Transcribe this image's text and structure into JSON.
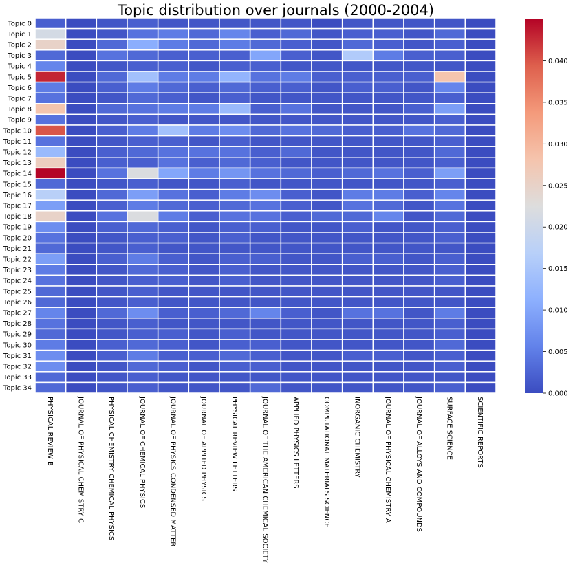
{
  "chart_data": {
    "type": "heatmap",
    "title": "Topic distribution over journals (2000-2004)",
    "xlabel": "",
    "ylabel": "",
    "columns": [
      "PHYSICAL REVIEW B",
      "JOURNAL OF PHYSICAL CHEMISTRY C",
      "PHYSICAL CHEMISTRY CHEMICAL PHYSICS",
      "JOURNAL OF CHEMICAL PHYSICS",
      "JOURNAL OF PHYSICS-CONDENSED MATTER",
      "JOURNAL OF APPLIED PHYSICS",
      "PHYSICAL REVIEW LETTERS",
      "JOURNAL OF THE AMERICAN CHEMICAL SOCIETY",
      "APPLIED PHYSICS LETTERS",
      "COMPUTATIONAL MATERIALS SCIENCE",
      "INORGANIC CHEMISTRY",
      "JOURNAL OF PHYSICAL CHEMISTRY A",
      "JOURNAL OF ALLOYS AND COMPOUNDS",
      "SURFACE SCIENCE",
      "SCIENTIFIC REPORTS"
    ],
    "rows": [
      "Topic 0",
      "Topic 1",
      "Topic 2",
      "Topic 3",
      "Topic 4",
      "Topic 5",
      "Topic 6",
      "Topic 7",
      "Topic 8",
      "Topic 9",
      "Topic 10",
      "Topic 11",
      "Topic 12",
      "Topic 13",
      "Topic 14",
      "Topic 15",
      "Topic 16",
      "Topic 17",
      "Topic 18",
      "Topic 19",
      "Topic 20",
      "Topic 21",
      "Topic 22",
      "Topic 23",
      "Topic 24",
      "Topic 25",
      "Topic 26",
      "Topic 27",
      "Topic 28",
      "Topic 29",
      "Topic 30",
      "Topic 31",
      "Topic 32",
      "Topic 33",
      "Topic 34"
    ],
    "values": [
      [
        0.002,
        0,
        0.001,
        0.002,
        0.001,
        0.001,
        0.001,
        0.001,
        0.001,
        0,
        0.001,
        0.001,
        0.001,
        0.001,
        0
      ],
      [
        0.021,
        0,
        0.001,
        0.004,
        0.005,
        0.003,
        0.006,
        0.002,
        0.003,
        0.001,
        0.002,
        0.002,
        0.001,
        0.003,
        0
      ],
      [
        0.025,
        0,
        0.003,
        0.011,
        0.005,
        0.003,
        0.005,
        0.003,
        0.002,
        0.001,
        0.003,
        0.002,
        0.001,
        0.002,
        0
      ],
      [
        0.003,
        0,
        0.004,
        0.003,
        0.002,
        0.002,
        0.002,
        0.01,
        0.002,
        0.001,
        0.016,
        0.005,
        0.002,
        0.002,
        0
      ],
      [
        0.006,
        0,
        0.001,
        0.002,
        0.002,
        0.001,
        0.002,
        0.002,
        0.001,
        0.001,
        0.001,
        0.001,
        0.001,
        0.001,
        0
      ],
      [
        0.043,
        0,
        0.003,
        0.014,
        0.005,
        0.005,
        0.012,
        0.004,
        0.005,
        0.002,
        0.002,
        0.002,
        0.002,
        0.028,
        0
      ],
      [
        0.005,
        0,
        0.002,
        0.005,
        0.003,
        0.002,
        0.003,
        0.002,
        0.002,
        0.001,
        0.002,
        0.002,
        0.001,
        0.006,
        0
      ],
      [
        0.004,
        0,
        0.001,
        0.003,
        0.002,
        0.001,
        0.002,
        0.001,
        0.001,
        0.001,
        0.001,
        0.001,
        0.001,
        0.002,
        0
      ],
      [
        0.028,
        0,
        0.003,
        0.004,
        0.005,
        0.005,
        0.013,
        0.002,
        0.004,
        0.001,
        0.001,
        0.001,
        0.002,
        0.009,
        0
      ],
      [
        0.004,
        0,
        0.001,
        0.002,
        0.001,
        0.001,
        0.001,
        0.001,
        0.001,
        0.001,
        0.001,
        0.001,
        0.001,
        0.002,
        0
      ],
      [
        0.04,
        0,
        0.002,
        0.005,
        0.014,
        0.005,
        0.007,
        0.003,
        0.004,
        0.003,
        0.002,
        0.002,
        0.004,
        0.003,
        0
      ],
      [
        0.004,
        0,
        0.001,
        0.002,
        0.002,
        0.001,
        0.002,
        0.001,
        0.001,
        0.001,
        0.001,
        0.001,
        0.001,
        0.002,
        0
      ],
      [
        0.013,
        0,
        0.002,
        0.003,
        0.004,
        0.004,
        0.004,
        0.002,
        0.003,
        0.001,
        0.001,
        0.001,
        0.001,
        0.003,
        0
      ],
      [
        0.026,
        0,
        0.002,
        0.002,
        0.004,
        0.002,
        0.003,
        0.002,
        0.001,
        0.001,
        0.001,
        0.001,
        0.001,
        0.002,
        0
      ],
      [
        0.045,
        0,
        0.004,
        0.022,
        0.01,
        0.005,
        0.008,
        0.004,
        0.003,
        0.002,
        0.003,
        0.004,
        0.002,
        0.009,
        0
      ],
      [
        0.003,
        0,
        0.001,
        0.002,
        0.001,
        0.001,
        0.002,
        0.001,
        0.001,
        0.001,
        0.001,
        0.001,
        0.001,
        0.002,
        0
      ],
      [
        0.017,
        0,
        0.003,
        0.009,
        0.004,
        0.002,
        0.005,
        0.007,
        0.002,
        0.001,
        0.005,
        0.005,
        0.002,
        0.006,
        0
      ],
      [
        0.009,
        0,
        0.002,
        0.005,
        0.003,
        0.002,
        0.003,
        0.004,
        0.002,
        0.001,
        0.004,
        0.003,
        0.001,
        0.004,
        0
      ],
      [
        0.025,
        0,
        0.004,
        0.022,
        0.005,
        0.002,
        0.004,
        0.004,
        0.002,
        0.003,
        0.003,
        0.006,
        0.001,
        0.003,
        0
      ],
      [
        0.007,
        0,
        0.002,
        0.003,
        0.002,
        0.001,
        0.002,
        0.002,
        0.001,
        0.001,
        0.002,
        0.001,
        0.001,
        0.002,
        0
      ],
      [
        0.004,
        0,
        0.001,
        0.002,
        0.002,
        0.001,
        0.002,
        0.001,
        0.001,
        0.001,
        0.001,
        0.001,
        0.001,
        0.002,
        0
      ],
      [
        0.003,
        0,
        0.001,
        0.002,
        0.001,
        0.001,
        0.001,
        0.001,
        0.001,
        0.001,
        0.001,
        0.001,
        0.001,
        0.001,
        0
      ],
      [
        0.009,
        0,
        0.002,
        0.005,
        0.002,
        0.001,
        0.002,
        0.002,
        0.001,
        0.001,
        0.002,
        0.002,
        0.001,
        0.002,
        0
      ],
      [
        0.005,
        0,
        0.001,
        0.003,
        0.002,
        0.001,
        0.002,
        0.001,
        0.001,
        0.001,
        0.001,
        0.001,
        0.001,
        0.002,
        0
      ],
      [
        0.004,
        0,
        0.001,
        0.002,
        0.002,
        0.001,
        0.002,
        0.001,
        0.001,
        0.001,
        0.001,
        0.001,
        0.001,
        0.002,
        0
      ],
      [
        0.003,
        0,
        0.001,
        0.002,
        0.001,
        0.001,
        0.001,
        0.001,
        0.001,
        0.001,
        0.001,
        0.001,
        0.001,
        0.001,
        0
      ],
      [
        0.003,
        0,
        0.001,
        0.002,
        0.001,
        0.001,
        0.001,
        0.001,
        0.001,
        0.001,
        0.001,
        0.001,
        0.001,
        0.001,
        0
      ],
      [
        0.006,
        0,
        0.003,
        0.007,
        0.002,
        0.002,
        0.003,
        0.006,
        0.002,
        0.001,
        0.004,
        0.004,
        0.001,
        0.005,
        0
      ],
      [
        0.004,
        0,
        0.001,
        0.002,
        0.001,
        0.001,
        0.001,
        0.001,
        0.001,
        0.001,
        0.001,
        0.001,
        0.001,
        0.002,
        0
      ],
      [
        0.003,
        0,
        0.001,
        0.002,
        0.002,
        0.001,
        0.002,
        0.001,
        0.001,
        0.001,
        0.001,
        0.001,
        0.001,
        0.002,
        0
      ],
      [
        0.005,
        0,
        0.002,
        0.003,
        0.002,
        0.001,
        0.002,
        0.002,
        0.001,
        0.001,
        0.001,
        0.001,
        0.001,
        0.003,
        0
      ],
      [
        0.007,
        0,
        0.002,
        0.005,
        0.002,
        0.002,
        0.003,
        0.002,
        0.001,
        0.001,
        0.002,
        0.002,
        0.001,
        0.002,
        0
      ],
      [
        0.007,
        0,
        0.001,
        0.003,
        0.002,
        0.001,
        0.002,
        0.002,
        0.001,
        0.001,
        0.001,
        0.001,
        0.001,
        0.002,
        0
      ],
      [
        0.003,
        0,
        0.001,
        0.002,
        0.001,
        0.001,
        0.001,
        0.001,
        0.001,
        0.001,
        0.001,
        0.001,
        0.001,
        0.001,
        0
      ],
      [
        0.003,
        0,
        0.001,
        0.002,
        0.001,
        0.001,
        0.001,
        0.003,
        0.001,
        0.001,
        0.001,
        0.001,
        0.001,
        0.002,
        0
      ]
    ],
    "colormap": "coolwarm",
    "vmin": 0,
    "vmax": 0.045,
    "colorbar_ticks": [
      0.0,
      0.005,
      0.01,
      0.015,
      0.02,
      0.025,
      0.03,
      0.035,
      0.04
    ],
    "colorbar_tick_labels": [
      "0.000",
      "0.005",
      "0.010",
      "0.015",
      "0.020",
      "0.025",
      "0.030",
      "0.035",
      "0.040"
    ],
    "cell_border_color": "#ffffff"
  }
}
